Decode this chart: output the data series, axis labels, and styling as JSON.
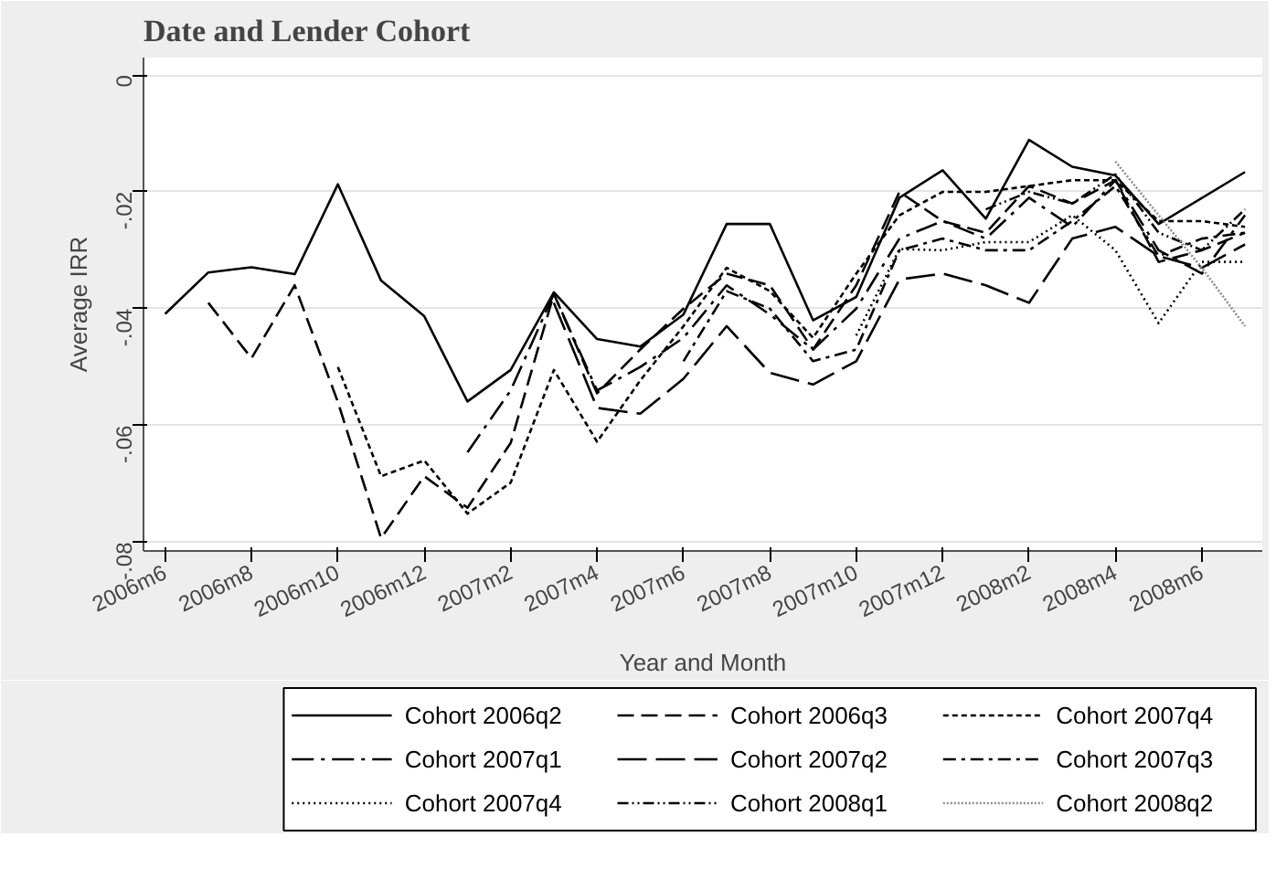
{
  "chart_data": {
    "type": "line",
    "title": "Date and Lender Cohort",
    "xlabel": "Year and Month",
    "ylabel": "Average IRR",
    "xlim": [
      "2006-05-16",
      "2008-07-13"
    ],
    "xticks": [
      {
        "value": "2006-06",
        "label": "2006m6"
      },
      {
        "value": "2006-08",
        "label": "2006m8"
      },
      {
        "value": "2006-10",
        "label": "2006m10"
      },
      {
        "value": "2006-12",
        "label": "2006m12"
      },
      {
        "value": "2007-02",
        "label": "2007m2"
      },
      {
        "value": "2007-04",
        "label": "2007m4"
      },
      {
        "value": "2007-06",
        "label": "2007m6"
      },
      {
        "value": "2007-08",
        "label": "2007m8"
      },
      {
        "value": "2007-10",
        "label": "2007m10"
      },
      {
        "value": "2007-12",
        "label": "2007m12"
      },
      {
        "value": "2008-02",
        "label": "2008m2"
      },
      {
        "value": "2008-04",
        "label": "2008m4"
      },
      {
        "value": "2008-06",
        "label": "2008m6"
      }
    ],
    "ylim": [
      -0.0815,
      0.003
    ],
    "yticks": [
      {
        "value": 0,
        "label": "0"
      },
      {
        "value": -0.02,
        "label": "-.02"
      },
      {
        "value": -0.04,
        "label": "-.04"
      },
      {
        "value": -0.06,
        "label": "-.06"
      },
      {
        "value": -0.08,
        "label": "-.08"
      }
    ],
    "grid": "y",
    "legend": "bottom",
    "series": [
      {
        "name": "Cohort 2006q2",
        "color": "#000000",
        "line_style": "solid",
        "x": [
          "2006-06",
          "2006-07",
          "2006-08",
          "2006-09",
          "2006-10",
          "2006-11",
          "2006-12",
          "2007-01",
          "2007-02",
          "2007-03",
          "2007-04",
          "2007-05",
          "2007-06",
          "2007-07",
          "2007-08",
          "2007-09",
          "2007-10",
          "2007-11",
          "2007-12",
          "2008-01",
          "2008-02",
          "2008-03",
          "2008-04",
          "2008-05",
          "2008-07"
        ],
        "values": [
          -0.0409,
          -0.0338,
          -0.0329,
          -0.0341,
          -0.0187,
          -0.0352,
          -0.0413,
          -0.0559,
          -0.0505,
          -0.0372,
          -0.0452,
          -0.0465,
          -0.041,
          -0.0255,
          -0.0255,
          -0.042,
          -0.038,
          -0.021,
          -0.0163,
          -0.0246,
          -0.0111,
          -0.0157,
          -0.0172,
          -0.0255,
          -0.0166
        ]
      },
      {
        "name": "Cohort 2006q3",
        "color": "#000000",
        "line_style": "dashed",
        "x": [
          "2006-07",
          "2006-08",
          "2006-09",
          "2006-10",
          "2006-11",
          "2006-12",
          "2007-01",
          "2007-02",
          "2007-03",
          "2007-04",
          "2007-05",
          "2007-06",
          "2007-07",
          "2007-08",
          "2007-09",
          "2007-10",
          "2007-11",
          "2007-12",
          "2008-01",
          "2008-02",
          "2008-03",
          "2008-04",
          "2008-05",
          "2008-06",
          "2008-07"
        ],
        "values": [
          -0.039,
          -0.0485,
          -0.036,
          -0.056,
          -0.0793,
          -0.0687,
          -0.0741,
          -0.063,
          -0.0375,
          -0.0545,
          -0.047,
          -0.04,
          -0.034,
          -0.036,
          -0.047,
          -0.036,
          -0.02,
          -0.025,
          -0.027,
          -0.019,
          -0.022,
          -0.018,
          -0.032,
          -0.03,
          -0.027
        ]
      },
      {
        "name": "Cohort  2007q4",
        "color": "#000000",
        "line_style": "shortdash",
        "x": [
          "2006-10",
          "2006-11",
          "2006-12",
          "2007-01",
          "2007-02",
          "2007-03",
          "2007-04",
          "2007-05",
          "2007-06",
          "2007-07",
          "2007-08",
          "2007-09",
          "2007-10",
          "2007-11",
          "2007-12",
          "2008-01",
          "2008-02",
          "2008-03",
          "2008-04",
          "2008-05",
          "2008-06",
          "2008-07"
        ],
        "values": [
          -0.05,
          -0.0687,
          -0.066,
          -0.0751,
          -0.0698,
          -0.0505,
          -0.0628,
          -0.0523,
          -0.043,
          -0.033,
          -0.037,
          -0.045,
          -0.034,
          -0.024,
          -0.02,
          -0.02,
          -0.019,
          -0.018,
          -0.018,
          -0.025,
          -0.025,
          -0.026
        ]
      },
      {
        "name": "Cohort 2007q1",
        "color": "#000000",
        "line_style": "longdashdot",
        "x": [
          "2007-01",
          "2007-02",
          "2007-03",
          "2007-04",
          "2007-05",
          "2007-06",
          "2007-07",
          "2007-08",
          "2007-09",
          "2007-10",
          "2007-11",
          "2007-12",
          "2008-01",
          "2008-02",
          "2008-03",
          "2008-04",
          "2008-05",
          "2008-06",
          "2008-07"
        ],
        "values": [
          -0.0646,
          -0.054,
          -0.0375,
          -0.054,
          -0.05,
          -0.045,
          -0.036,
          -0.041,
          -0.047,
          -0.04,
          -0.028,
          -0.025,
          -0.028,
          -0.021,
          -0.026,
          -0.018,
          -0.03,
          -0.034,
          -0.024
        ]
      },
      {
        "name": "Cohort 2007q2",
        "color": "#000000",
        "line_style": "longdash",
        "x": [
          "2007-03",
          "2007-04",
          "2007-05",
          "2007-06",
          "2007-07",
          "2007-08",
          "2007-09",
          "2007-10",
          "2007-11",
          "2007-12",
          "2008-01",
          "2008-02",
          "2008-03",
          "2008-04",
          "2008-05",
          "2008-06",
          "2008-07"
        ],
        "values": [
          -0.039,
          -0.057,
          -0.058,
          -0.052,
          -0.043,
          -0.051,
          -0.053,
          -0.049,
          -0.035,
          -0.034,
          -0.036,
          -0.039,
          -0.028,
          -0.026,
          -0.031,
          -0.033,
          -0.029
        ]
      },
      {
        "name": "Cohort 2007q3",
        "color": "#000000",
        "line_style": "dashdot",
        "x": [
          "2007-06",
          "2007-07",
          "2007-08",
          "2007-09",
          "2007-10",
          "2007-11",
          "2007-12",
          "2008-01",
          "2008-02",
          "2008-03",
          "2008-04",
          "2008-05",
          "2008-06",
          "2008-07"
        ],
        "values": [
          -0.049,
          -0.037,
          -0.04,
          -0.049,
          -0.047,
          -0.03,
          -0.028,
          -0.03,
          -0.03,
          -0.025,
          -0.019,
          -0.031,
          -0.028,
          -0.027
        ]
      },
      {
        "name": "Cohort 2007q4",
        "color": "#000000",
        "line_style": "dotted",
        "x": [
          "2007-10",
          "2007-11",
          "2007-12",
          "2008-01",
          "2008-02",
          "2008-03",
          "2008-04",
          "2008-05",
          "2008-06",
          "2008-07"
        ],
        "values": [
          -0.0446,
          -0.0298,
          -0.03,
          -0.0286,
          -0.0286,
          -0.024,
          -0.03,
          -0.0425,
          -0.032,
          -0.032
        ]
      },
      {
        "name": "Cohort 2008q1",
        "color": "#000000",
        "line_style": "dashdotdot",
        "x": [
          "2008-01",
          "2008-02",
          "2008-03",
          "2008-04",
          "2008-05",
          "2008-06",
          "2008-07"
        ],
        "values": [
          -0.023,
          -0.02,
          -0.022,
          -0.017,
          -0.027,
          -0.03,
          -0.023
        ]
      },
      {
        "name": "Cohort 2008q2",
        "color": "#8c8c8c",
        "line_style": "densedot",
        "x": [
          "2008-04",
          "2008-05",
          "2008-06",
          "2008-07"
        ],
        "values": [
          -0.0148,
          -0.024,
          -0.033,
          -0.043
        ]
      }
    ]
  }
}
